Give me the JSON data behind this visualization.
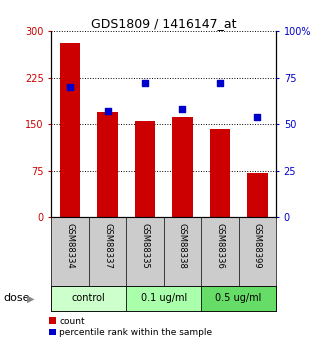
{
  "title": "GDS1809 / 1416147_at",
  "samples": [
    "GSM88334",
    "GSM88337",
    "GSM88335",
    "GSM88338",
    "GSM88336",
    "GSM88399"
  ],
  "counts": [
    280,
    170,
    155,
    162,
    142,
    72
  ],
  "percentiles": [
    70,
    57,
    72,
    58,
    72,
    54
  ],
  "groups": [
    {
      "label": "control",
      "indices": [
        0,
        1
      ]
    },
    {
      "label": "0.1 ug/ml",
      "indices": [
        2,
        3
      ]
    },
    {
      "label": "0.5 ug/ml",
      "indices": [
        4,
        5
      ]
    }
  ],
  "group_colors": [
    "#ccffcc",
    "#aaffaa",
    "#66dd66"
  ],
  "bar_color": "#cc0000",
  "dot_color": "#0000cc",
  "ylim_left": [
    0,
    300
  ],
  "ylim_right": [
    0,
    100
  ],
  "yticks_left": [
    0,
    75,
    150,
    225,
    300
  ],
  "ytick_labels_left": [
    "0",
    "75",
    "150",
    "225",
    "300"
  ],
  "yticks_right": [
    0,
    25,
    50,
    75,
    100
  ],
  "ytick_labels_right": [
    "0",
    "25",
    "50",
    "75",
    "100%"
  ],
  "dot_size": 20,
  "bar_width": 0.55,
  "background_color": "#ffffff",
  "grid_color": "#000000",
  "dose_label": "dose",
  "legend_count": "count",
  "legend_percentile": "percentile rank within the sample"
}
